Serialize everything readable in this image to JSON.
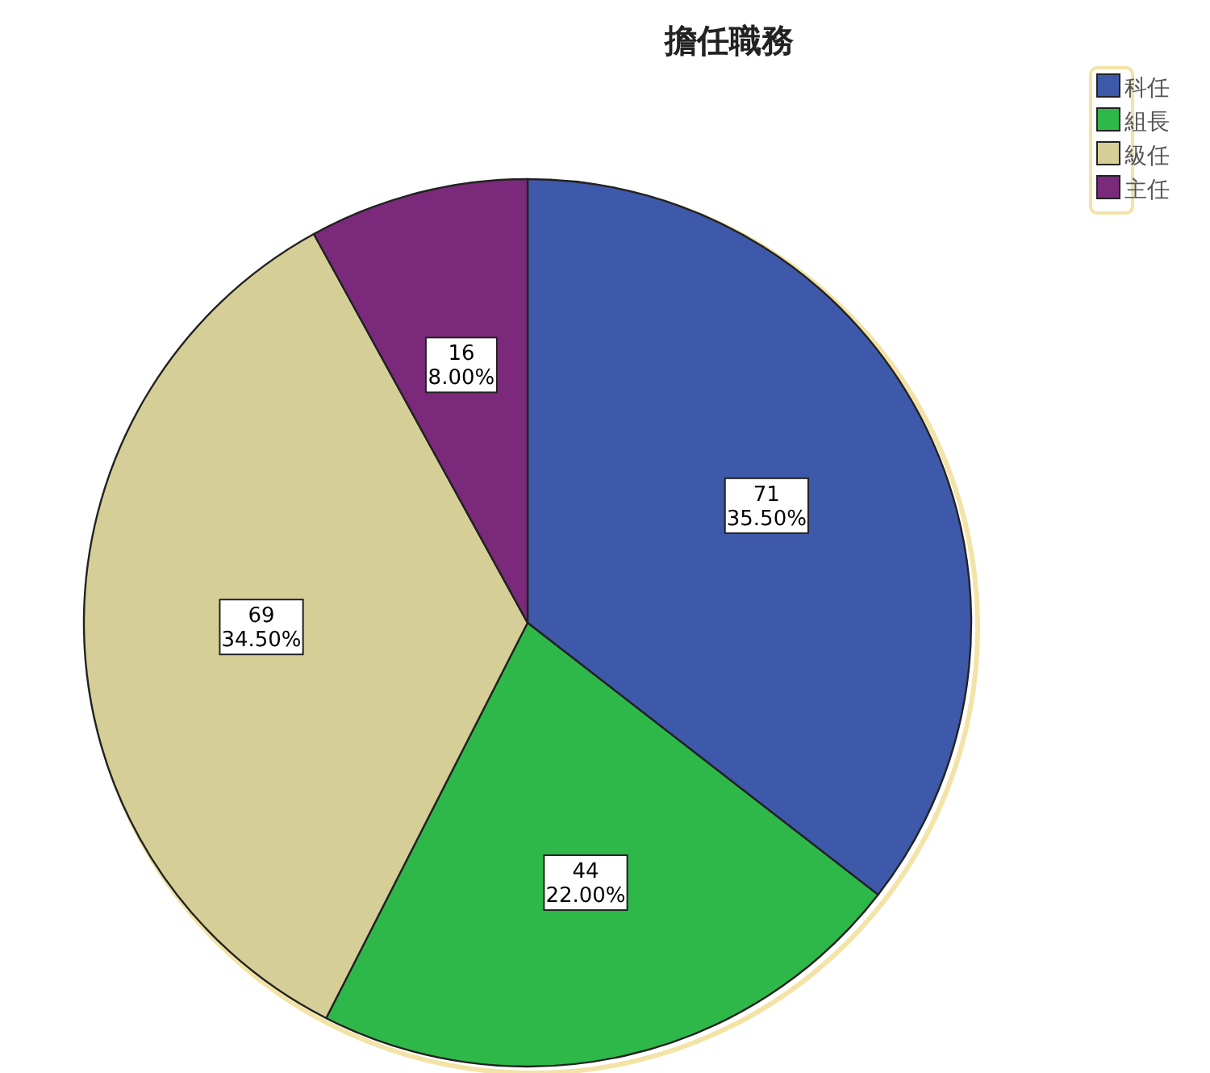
{
  "chart_data": {
    "type": "pie",
    "title": "擔任職務",
    "categories": [
      "科任",
      "組長",
      "級任",
      "主任"
    ],
    "values": [
      71,
      44,
      69,
      16
    ],
    "colors": [
      "#3e59aa",
      "#2fb84a",
      "#d5cf97",
      "#7b2a7b"
    ],
    "value_labels": [
      "71\n35.50%",
      "44\n22.00%",
      "69\n34.50%",
      "16\n8.00%"
    ],
    "legend": "top right"
  }
}
